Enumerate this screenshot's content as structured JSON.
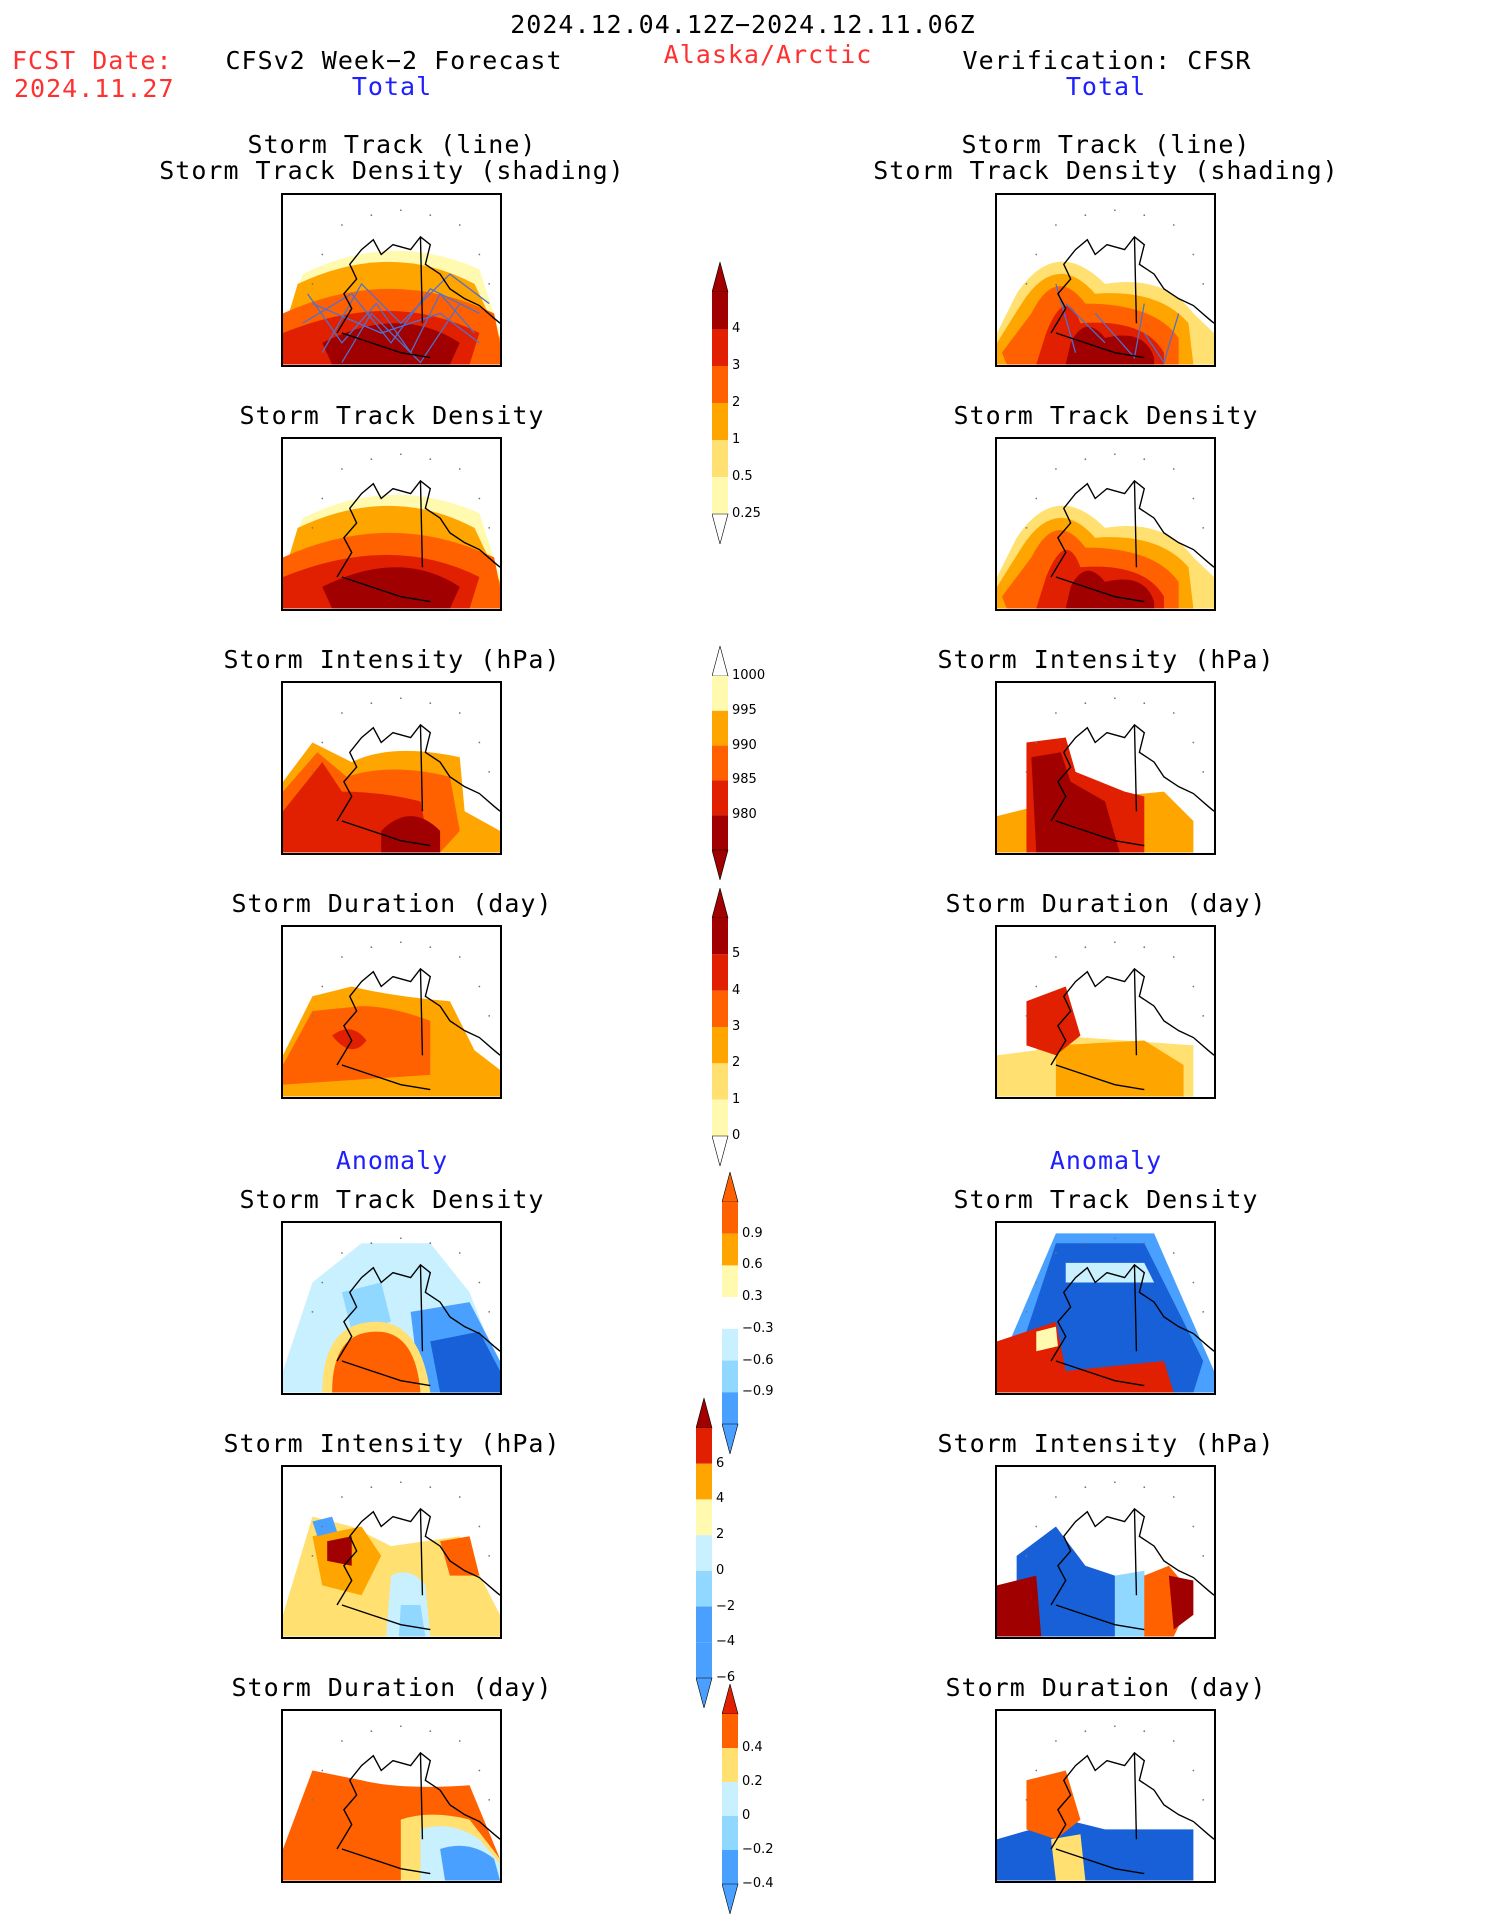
{
  "header": {
    "period": "2024.12.04.12Z−2024.12.11.06Z",
    "fcst_label": "FCST Date:",
    "fcst_date": "2024.11.27",
    "region": "Alaska/Arctic",
    "left_title": "CFSv2 Week−2 Forecast",
    "right_title": "Verification: CFSR",
    "total_left": "Total",
    "total_right": "Total",
    "anomaly_left": "Anomaly",
    "anomaly_right": "Anomaly"
  },
  "panels": {
    "row1_line1": "Storm Track (line)",
    "row1_line2": "Storm Track Density (shading)",
    "density": "Storm Track Density",
    "intensity": "Storm Intensity (hPa)",
    "duration": "Storm Duration (day)"
  },
  "colorbars": {
    "density_total": [
      "4",
      "3",
      "2",
      "1",
      "0.5",
      "0.25"
    ],
    "intensity_total": [
      "1000",
      "995",
      "990",
      "985",
      "980"
    ],
    "duration_total": [
      "5",
      "4",
      "3",
      "2",
      "1",
      "0"
    ],
    "density_anom": [
      "0.9",
      "0.6",
      "0.3",
      "−0.3",
      "−0.6",
      "−0.9"
    ],
    "intensity_anom": [
      "6",
      "4",
      "2",
      "0",
      "−2",
      "−4",
      "−6"
    ],
    "duration_anom": [
      "0.4",
      "0.2",
      "0",
      "−0.2",
      "−0.4"
    ]
  },
  "colors": {
    "title_red": "#ff3030",
    "title_blue": "#2020ff",
    "warm": [
      "#fffab0",
      "#ffe070",
      "#ffa500",
      "#ff6000",
      "#e02000",
      "#a00000"
    ],
    "cool": [
      "#c8f0ff",
      "#90d8ff",
      "#4aa0ff",
      "#1860d8"
    ]
  }
}
